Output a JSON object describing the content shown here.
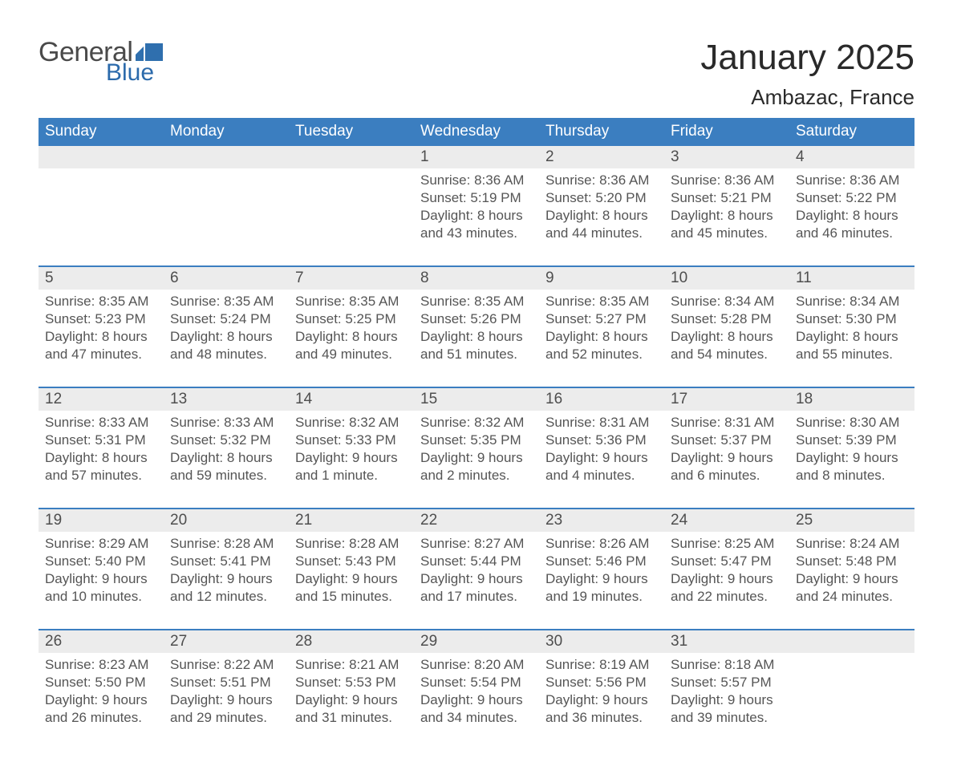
{
  "brand": {
    "word1": "General",
    "word2": "Blue",
    "flag_color": "#2f6fae"
  },
  "title": "January 2025",
  "location": "Ambazac, France",
  "colors": {
    "header_bg": "#3b7ec0",
    "header_text": "#ffffff",
    "row_gray": "#ececec",
    "border_blue": "#3b7ec0",
    "text_dark": "#3a3a3a",
    "text_gray": "#555555",
    "page_bg": "#ffffff"
  },
  "daysOfWeek": [
    "Sunday",
    "Monday",
    "Tuesday",
    "Wednesday",
    "Thursday",
    "Friday",
    "Saturday"
  ],
  "weeks": [
    [
      null,
      null,
      null,
      {
        "n": "1",
        "sunrise": "8:36 AM",
        "sunset": "5:19 PM",
        "daylight": "8 hours and 43 minutes."
      },
      {
        "n": "2",
        "sunrise": "8:36 AM",
        "sunset": "5:20 PM",
        "daylight": "8 hours and 44 minutes."
      },
      {
        "n": "3",
        "sunrise": "8:36 AM",
        "sunset": "5:21 PM",
        "daylight": "8 hours and 45 minutes."
      },
      {
        "n": "4",
        "sunrise": "8:36 AM",
        "sunset": "5:22 PM",
        "daylight": "8 hours and 46 minutes."
      }
    ],
    [
      {
        "n": "5",
        "sunrise": "8:35 AM",
        "sunset": "5:23 PM",
        "daylight": "8 hours and 47 minutes."
      },
      {
        "n": "6",
        "sunrise": "8:35 AM",
        "sunset": "5:24 PM",
        "daylight": "8 hours and 48 minutes."
      },
      {
        "n": "7",
        "sunrise": "8:35 AM",
        "sunset": "5:25 PM",
        "daylight": "8 hours and 49 minutes."
      },
      {
        "n": "8",
        "sunrise": "8:35 AM",
        "sunset": "5:26 PM",
        "daylight": "8 hours and 51 minutes."
      },
      {
        "n": "9",
        "sunrise": "8:35 AM",
        "sunset": "5:27 PM",
        "daylight": "8 hours and 52 minutes."
      },
      {
        "n": "10",
        "sunrise": "8:34 AM",
        "sunset": "5:28 PM",
        "daylight": "8 hours and 54 minutes."
      },
      {
        "n": "11",
        "sunrise": "8:34 AM",
        "sunset": "5:30 PM",
        "daylight": "8 hours and 55 minutes."
      }
    ],
    [
      {
        "n": "12",
        "sunrise": "8:33 AM",
        "sunset": "5:31 PM",
        "daylight": "8 hours and 57 minutes."
      },
      {
        "n": "13",
        "sunrise": "8:33 AM",
        "sunset": "5:32 PM",
        "daylight": "8 hours and 59 minutes."
      },
      {
        "n": "14",
        "sunrise": "8:32 AM",
        "sunset": "5:33 PM",
        "daylight": "9 hours and 1 minute."
      },
      {
        "n": "15",
        "sunrise": "8:32 AM",
        "sunset": "5:35 PM",
        "daylight": "9 hours and 2 minutes."
      },
      {
        "n": "16",
        "sunrise": "8:31 AM",
        "sunset": "5:36 PM",
        "daylight": "9 hours and 4 minutes."
      },
      {
        "n": "17",
        "sunrise": "8:31 AM",
        "sunset": "5:37 PM",
        "daylight": "9 hours and 6 minutes."
      },
      {
        "n": "18",
        "sunrise": "8:30 AM",
        "sunset": "5:39 PM",
        "daylight": "9 hours and 8 minutes."
      }
    ],
    [
      {
        "n": "19",
        "sunrise": "8:29 AM",
        "sunset": "5:40 PM",
        "daylight": "9 hours and 10 minutes."
      },
      {
        "n": "20",
        "sunrise": "8:28 AM",
        "sunset": "5:41 PM",
        "daylight": "9 hours and 12 minutes."
      },
      {
        "n": "21",
        "sunrise": "8:28 AM",
        "sunset": "5:43 PM",
        "daylight": "9 hours and 15 minutes."
      },
      {
        "n": "22",
        "sunrise": "8:27 AM",
        "sunset": "5:44 PM",
        "daylight": "9 hours and 17 minutes."
      },
      {
        "n": "23",
        "sunrise": "8:26 AM",
        "sunset": "5:46 PM",
        "daylight": "9 hours and 19 minutes."
      },
      {
        "n": "24",
        "sunrise": "8:25 AM",
        "sunset": "5:47 PM",
        "daylight": "9 hours and 22 minutes."
      },
      {
        "n": "25",
        "sunrise": "8:24 AM",
        "sunset": "5:48 PM",
        "daylight": "9 hours and 24 minutes."
      }
    ],
    [
      {
        "n": "26",
        "sunrise": "8:23 AM",
        "sunset": "5:50 PM",
        "daylight": "9 hours and 26 minutes."
      },
      {
        "n": "27",
        "sunrise": "8:22 AM",
        "sunset": "5:51 PM",
        "daylight": "9 hours and 29 minutes."
      },
      {
        "n": "28",
        "sunrise": "8:21 AM",
        "sunset": "5:53 PM",
        "daylight": "9 hours and 31 minutes."
      },
      {
        "n": "29",
        "sunrise": "8:20 AM",
        "sunset": "5:54 PM",
        "daylight": "9 hours and 34 minutes."
      },
      {
        "n": "30",
        "sunrise": "8:19 AM",
        "sunset": "5:56 PM",
        "daylight": "9 hours and 36 minutes."
      },
      {
        "n": "31",
        "sunrise": "8:18 AM",
        "sunset": "5:57 PM",
        "daylight": "9 hours and 39 minutes."
      },
      null
    ]
  ],
  "labels": {
    "sunrise": "Sunrise:",
    "sunset": "Sunset:",
    "daylight": "Daylight:"
  }
}
